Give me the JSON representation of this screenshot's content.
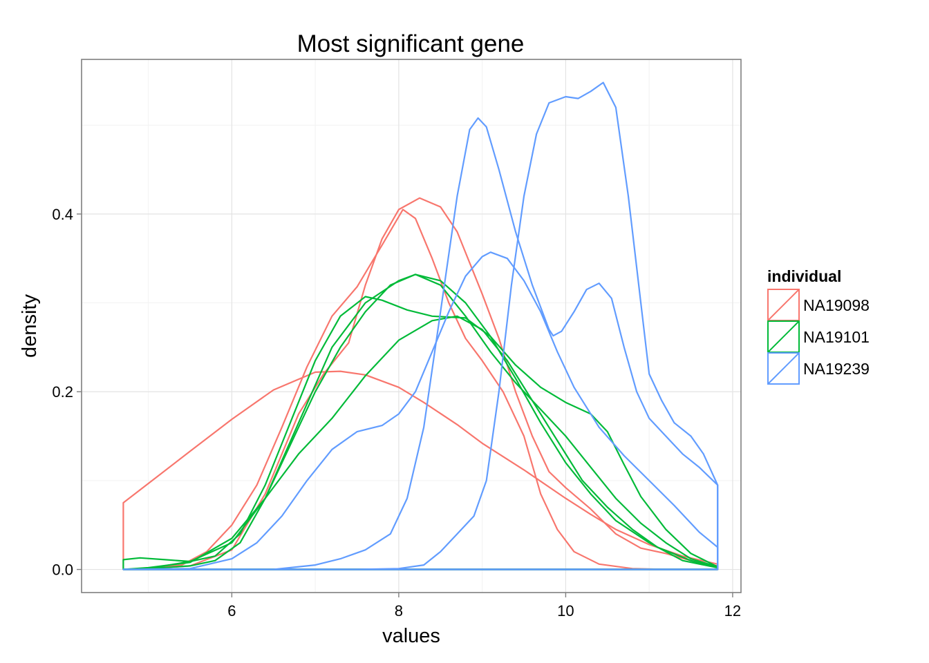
{
  "chart_data": {
    "type": "line",
    "title": "Most significant gene",
    "xlabel": "values",
    "ylabel": "density",
    "xlim": [
      4.2,
      12.1
    ],
    "ylim": [
      -0.026,
      0.574
    ],
    "x_ticks": [
      6,
      8,
      10,
      12
    ],
    "y_ticks": [
      0.0,
      0.2,
      0.4
    ],
    "x_tick_labels": [
      "6",
      "8",
      "10",
      "12"
    ],
    "y_tick_labels": [
      "0.0",
      "0.2",
      "0.4"
    ],
    "grid": true,
    "legend_position": "right",
    "legend": {
      "title": "individual",
      "entries": [
        {
          "name": "NA19098",
          "color": "#F8766D"
        },
        {
          "name": "NA19101",
          "color": "#00BA38"
        },
        {
          "name": "NA19239",
          "color": "#619CFF"
        }
      ]
    },
    "series": [
      {
        "group": "NA19098",
        "color": "#F8766D",
        "closed": true,
        "points": [
          [
            4.7,
            0
          ],
          [
            4.7,
            0.075
          ],
          [
            5.1,
            0.104
          ],
          [
            5.5,
            0.133
          ],
          [
            6.0,
            0.169
          ],
          [
            6.5,
            0.202
          ],
          [
            7.0,
            0.222
          ],
          [
            7.3,
            0.223
          ],
          [
            7.6,
            0.219
          ],
          [
            8.0,
            0.205
          ],
          [
            8.3,
            0.188
          ],
          [
            8.7,
            0.163
          ],
          [
            9.0,
            0.142
          ],
          [
            9.5,
            0.112
          ],
          [
            10.0,
            0.08
          ],
          [
            10.3,
            0.062
          ],
          [
            10.6,
            0.045
          ],
          [
            11.0,
            0.028
          ],
          [
            11.4,
            0.015
          ],
          [
            11.82,
            0.006
          ],
          [
            11.82,
            0
          ]
        ]
      },
      {
        "group": "NA19098",
        "color": "#F8766D",
        "closed": true,
        "points": [
          [
            4.7,
            0
          ],
          [
            5.0,
            0.001
          ],
          [
            5.4,
            0.005
          ],
          [
            5.7,
            0.02
          ],
          [
            6.0,
            0.05
          ],
          [
            6.3,
            0.095
          ],
          [
            6.6,
            0.16
          ],
          [
            6.9,
            0.228
          ],
          [
            7.2,
            0.285
          ],
          [
            7.5,
            0.318
          ],
          [
            7.8,
            0.365
          ],
          [
            8.05,
            0.405
          ],
          [
            8.2,
            0.395
          ],
          [
            8.4,
            0.35
          ],
          [
            8.6,
            0.3
          ],
          [
            8.8,
            0.26
          ],
          [
            9.0,
            0.235
          ],
          [
            9.25,
            0.2
          ],
          [
            9.5,
            0.15
          ],
          [
            9.7,
            0.085
          ],
          [
            9.9,
            0.045
          ],
          [
            10.1,
            0.02
          ],
          [
            10.4,
            0.006
          ],
          [
            10.8,
            0.001
          ],
          [
            11.2,
            0
          ],
          [
            11.82,
            0
          ]
        ]
      },
      {
        "group": "NA19098",
        "color": "#F8766D",
        "closed": true,
        "points": [
          [
            4.7,
            0
          ],
          [
            5.0,
            0.001
          ],
          [
            5.5,
            0.004
          ],
          [
            6.0,
            0.022
          ],
          [
            6.4,
            0.085
          ],
          [
            6.8,
            0.175
          ],
          [
            7.1,
            0.22
          ],
          [
            7.4,
            0.255
          ],
          [
            7.6,
            0.32
          ],
          [
            7.8,
            0.372
          ],
          [
            8.0,
            0.405
          ],
          [
            8.25,
            0.418
          ],
          [
            8.5,
            0.408
          ],
          [
            8.7,
            0.38
          ],
          [
            8.85,
            0.345
          ],
          [
            9.0,
            0.31
          ],
          [
            9.2,
            0.26
          ],
          [
            9.4,
            0.2
          ],
          [
            9.6,
            0.15
          ],
          [
            9.8,
            0.11
          ],
          [
            10.0,
            0.092
          ],
          [
            10.3,
            0.068
          ],
          [
            10.6,
            0.04
          ],
          [
            10.9,
            0.024
          ],
          [
            11.2,
            0.018
          ],
          [
            11.5,
            0.01
          ],
          [
            11.82,
            0.004
          ],
          [
            11.82,
            0
          ]
        ]
      },
      {
        "group": "NA19101",
        "color": "#00BA38",
        "closed": true,
        "points": [
          [
            4.7,
            0
          ],
          [
            4.7,
            0.011
          ],
          [
            4.9,
            0.013
          ],
          [
            5.2,
            0.011
          ],
          [
            5.5,
            0.009
          ],
          [
            5.8,
            0.015
          ],
          [
            6.1,
            0.04
          ],
          [
            6.4,
            0.095
          ],
          [
            6.7,
            0.165
          ],
          [
            7.0,
            0.235
          ],
          [
            7.3,
            0.285
          ],
          [
            7.6,
            0.307
          ],
          [
            7.8,
            0.303
          ],
          [
            8.1,
            0.292
          ],
          [
            8.4,
            0.285
          ],
          [
            8.8,
            0.283
          ],
          [
            9.1,
            0.262
          ],
          [
            9.4,
            0.23
          ],
          [
            9.7,
            0.205
          ],
          [
            10.0,
            0.188
          ],
          [
            10.3,
            0.175
          ],
          [
            10.5,
            0.155
          ],
          [
            10.7,
            0.118
          ],
          [
            10.9,
            0.082
          ],
          [
            11.2,
            0.045
          ],
          [
            11.5,
            0.018
          ],
          [
            11.82,
            0.003
          ],
          [
            11.82,
            0
          ]
        ]
      },
      {
        "group": "NA19101",
        "color": "#00BA38",
        "closed": true,
        "points": [
          [
            4.7,
            0
          ],
          [
            5.0,
            0.002
          ],
          [
            5.5,
            0.008
          ],
          [
            6.0,
            0.035
          ],
          [
            6.4,
            0.08
          ],
          [
            6.8,
            0.165
          ],
          [
            7.2,
            0.25
          ],
          [
            7.6,
            0.3
          ],
          [
            8.0,
            0.325
          ],
          [
            8.2,
            0.332
          ],
          [
            8.5,
            0.325
          ],
          [
            8.8,
            0.3
          ],
          [
            9.1,
            0.262
          ],
          [
            9.4,
            0.215
          ],
          [
            9.7,
            0.165
          ],
          [
            10.0,
            0.12
          ],
          [
            10.3,
            0.085
          ],
          [
            10.6,
            0.055
          ],
          [
            11.0,
            0.03
          ],
          [
            11.4,
            0.01
          ],
          [
            11.82,
            0.002
          ],
          [
            11.82,
            0
          ]
        ]
      },
      {
        "group": "NA19101",
        "color": "#00BA38",
        "closed": true,
        "points": [
          [
            4.7,
            0
          ],
          [
            5.0,
            0.001
          ],
          [
            5.5,
            0.009
          ],
          [
            6.0,
            0.03
          ],
          [
            6.4,
            0.08
          ],
          [
            6.8,
            0.13
          ],
          [
            7.2,
            0.17
          ],
          [
            7.6,
            0.218
          ],
          [
            8.0,
            0.258
          ],
          [
            8.4,
            0.28
          ],
          [
            8.7,
            0.285
          ],
          [
            9.0,
            0.27
          ],
          [
            9.3,
            0.235
          ],
          [
            9.6,
            0.19
          ],
          [
            9.9,
            0.145
          ],
          [
            10.2,
            0.1
          ],
          [
            10.5,
            0.07
          ],
          [
            10.8,
            0.045
          ],
          [
            11.1,
            0.025
          ],
          [
            11.5,
            0.01
          ],
          [
            11.82,
            0.002
          ],
          [
            11.82,
            0
          ]
        ]
      },
      {
        "group": "NA19101",
        "color": "#00BA38",
        "closed": true,
        "points": [
          [
            4.7,
            0
          ],
          [
            5.0,
            0.001
          ],
          [
            5.5,
            0.004
          ],
          [
            5.8,
            0.01
          ],
          [
            6.1,
            0.03
          ],
          [
            6.4,
            0.08
          ],
          [
            6.7,
            0.14
          ],
          [
            7.0,
            0.2
          ],
          [
            7.3,
            0.25
          ],
          [
            7.6,
            0.29
          ],
          [
            7.9,
            0.32
          ],
          [
            8.2,
            0.332
          ],
          [
            8.5,
            0.32
          ],
          [
            8.8,
            0.285
          ],
          [
            9.1,
            0.245
          ],
          [
            9.4,
            0.21
          ],
          [
            9.7,
            0.18
          ],
          [
            10.0,
            0.15
          ],
          [
            10.3,
            0.115
          ],
          [
            10.6,
            0.08
          ],
          [
            10.9,
            0.052
          ],
          [
            11.2,
            0.03
          ],
          [
            11.5,
            0.012
          ],
          [
            11.82,
            0.003
          ],
          [
            11.82,
            0
          ]
        ]
      },
      {
        "group": "NA19239",
        "color": "#619CFF",
        "closed": true,
        "points": [
          [
            4.7,
            0
          ],
          [
            5.5,
            0.001
          ],
          [
            6.0,
            0.012
          ],
          [
            6.3,
            0.03
          ],
          [
            6.6,
            0.06
          ],
          [
            6.9,
            0.1
          ],
          [
            7.2,
            0.135
          ],
          [
            7.5,
            0.155
          ],
          [
            7.8,
            0.162
          ],
          [
            8.0,
            0.175
          ],
          [
            8.2,
            0.2
          ],
          [
            8.4,
            0.245
          ],
          [
            8.6,
            0.29
          ],
          [
            8.8,
            0.33
          ],
          [
            9.0,
            0.352
          ],
          [
            9.1,
            0.357
          ],
          [
            9.3,
            0.35
          ],
          [
            9.5,
            0.325
          ],
          [
            9.7,
            0.29
          ],
          [
            9.9,
            0.245
          ],
          [
            10.1,
            0.205
          ],
          [
            10.4,
            0.16
          ],
          [
            10.7,
            0.128
          ],
          [
            11.0,
            0.1
          ],
          [
            11.3,
            0.072
          ],
          [
            11.6,
            0.042
          ],
          [
            11.82,
            0.025
          ],
          [
            11.82,
            0
          ]
        ]
      },
      {
        "group": "NA19239",
        "color": "#619CFF",
        "closed": true,
        "points": [
          [
            4.7,
            0
          ],
          [
            6.5,
            0
          ],
          [
            7.0,
            0.005
          ],
          [
            7.3,
            0.012
          ],
          [
            7.6,
            0.022
          ],
          [
            7.9,
            0.04
          ],
          [
            8.1,
            0.08
          ],
          [
            8.3,
            0.16
          ],
          [
            8.5,
            0.29
          ],
          [
            8.7,
            0.42
          ],
          [
            8.85,
            0.495
          ],
          [
            8.95,
            0.508
          ],
          [
            9.05,
            0.498
          ],
          [
            9.2,
            0.45
          ],
          [
            9.4,
            0.38
          ],
          [
            9.6,
            0.32
          ],
          [
            9.8,
            0.27
          ],
          [
            9.85,
            0.263
          ],
          [
            9.95,
            0.268
          ],
          [
            10.1,
            0.29
          ],
          [
            10.25,
            0.315
          ],
          [
            10.4,
            0.322
          ],
          [
            10.55,
            0.305
          ],
          [
            10.7,
            0.25
          ],
          [
            10.85,
            0.2
          ],
          [
            11.0,
            0.17
          ],
          [
            11.2,
            0.15
          ],
          [
            11.4,
            0.13
          ],
          [
            11.6,
            0.115
          ],
          [
            11.82,
            0.095
          ],
          [
            11.82,
            0
          ]
        ]
      },
      {
        "group": "NA19239",
        "color": "#619CFF",
        "closed": true,
        "points": [
          [
            4.7,
            0
          ],
          [
            7.5,
            0
          ],
          [
            8.0,
            0.001
          ],
          [
            8.3,
            0.005
          ],
          [
            8.5,
            0.02
          ],
          [
            8.7,
            0.04
          ],
          [
            8.9,
            0.06
          ],
          [
            9.05,
            0.1
          ],
          [
            9.2,
            0.2
          ],
          [
            9.35,
            0.32
          ],
          [
            9.5,
            0.42
          ],
          [
            9.65,
            0.49
          ],
          [
            9.8,
            0.525
          ],
          [
            10.0,
            0.532
          ],
          [
            10.15,
            0.53
          ],
          [
            10.3,
            0.538
          ],
          [
            10.45,
            0.548
          ],
          [
            10.6,
            0.52
          ],
          [
            10.75,
            0.42
          ],
          [
            10.9,
            0.3
          ],
          [
            11.0,
            0.22
          ],
          [
            11.15,
            0.19
          ],
          [
            11.3,
            0.165
          ],
          [
            11.5,
            0.15
          ],
          [
            11.65,
            0.13
          ],
          [
            11.82,
            0.095
          ],
          [
            11.82,
            0
          ]
        ]
      }
    ]
  }
}
